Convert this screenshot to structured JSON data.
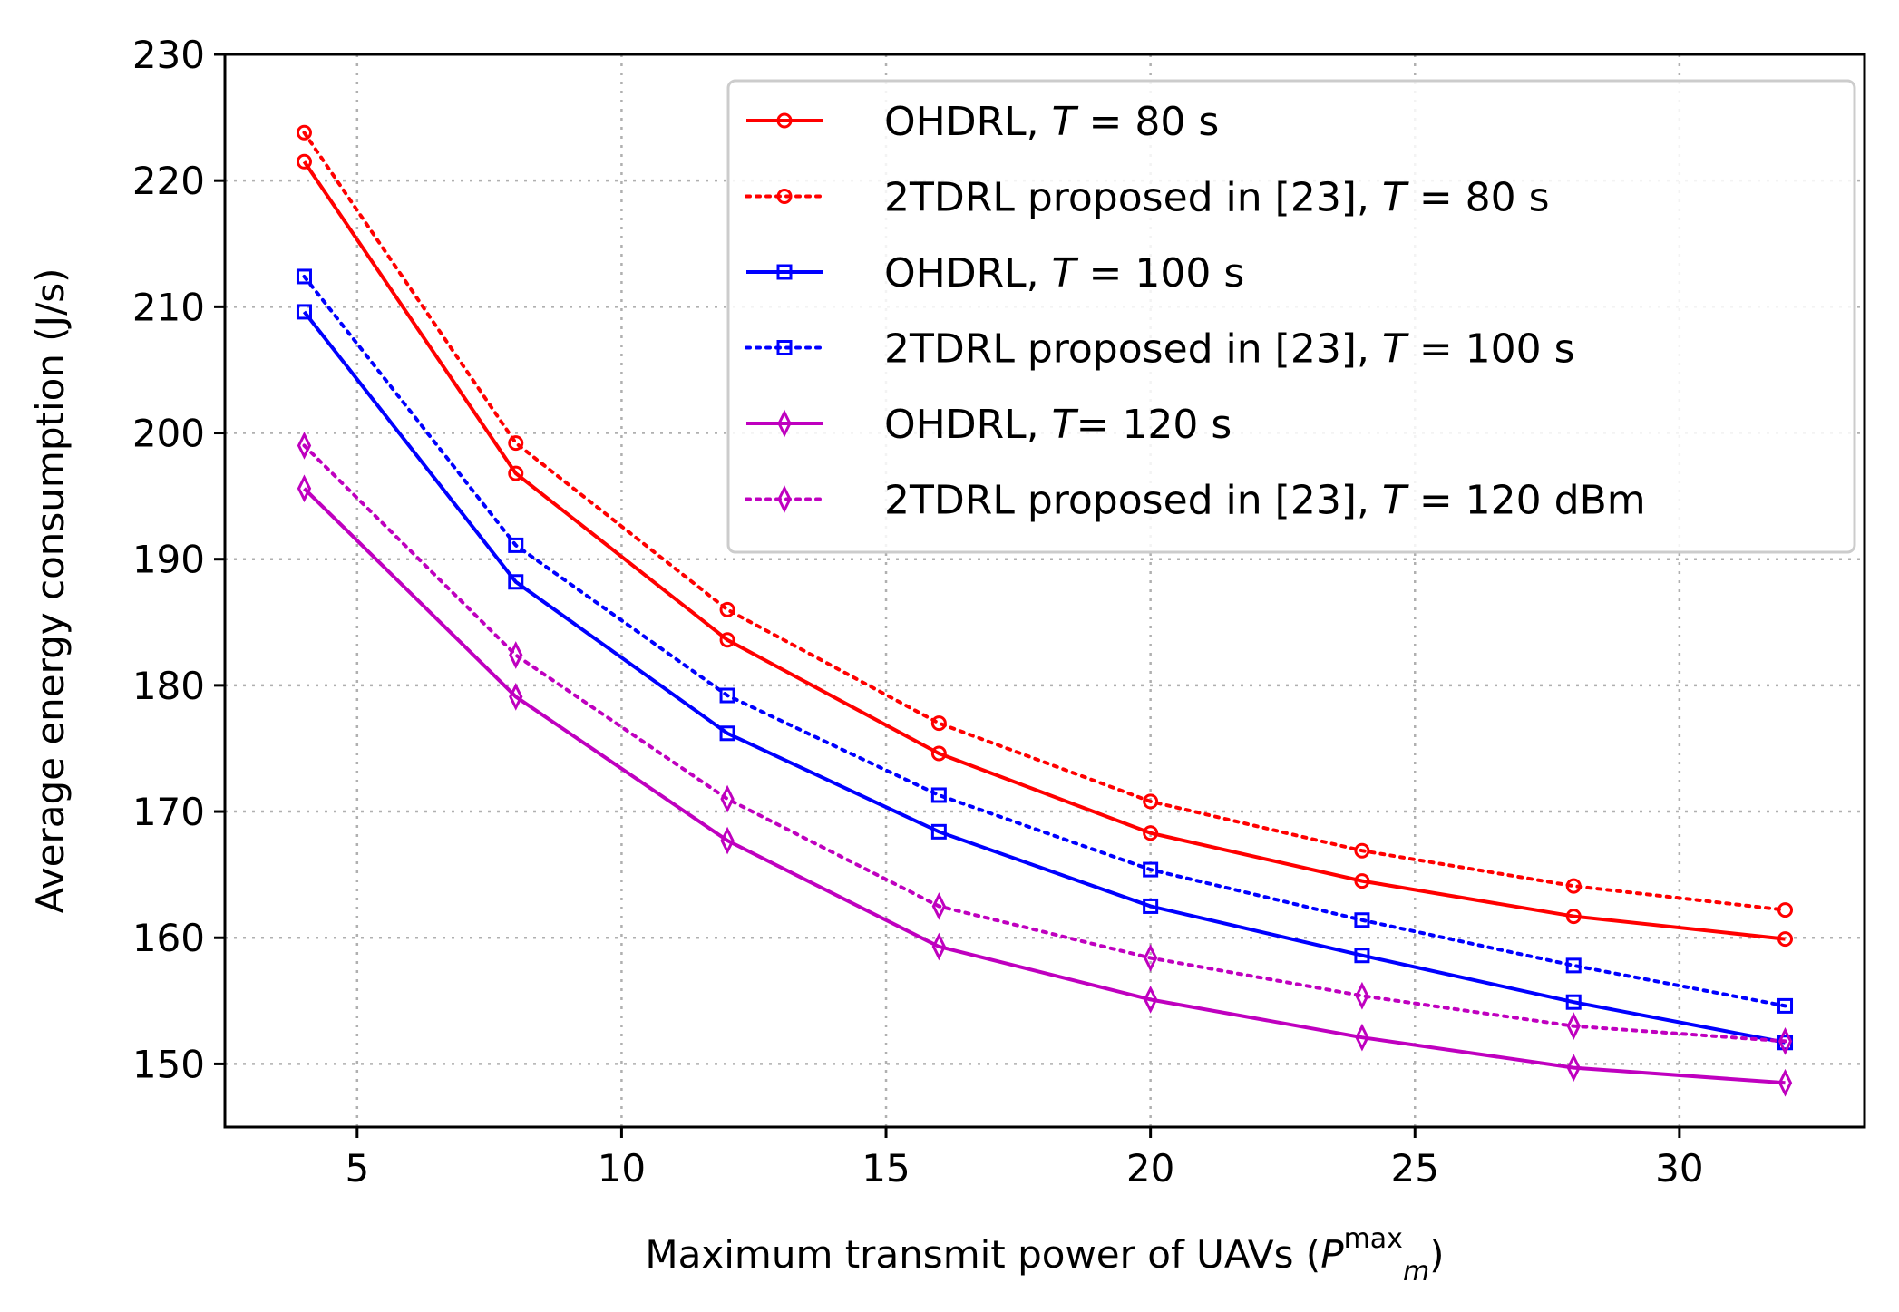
{
  "chart_data": {
    "type": "line",
    "xlabel": "Maximum transmit power of UAVs (",
    "xlabel_symbol": "P",
    "xlabel_subscript": "m",
    "xlabel_superscript": "max",
    "xlabel_close": ")",
    "ylabel": "Average energy consumption (J/s)",
    "xlim": [
      2.5,
      33.5
    ],
    "ylim": [
      145,
      230
    ],
    "xticks": [
      5,
      10,
      15,
      20,
      25,
      30
    ],
    "yticks": [
      150,
      160,
      170,
      180,
      190,
      200,
      210,
      220,
      230
    ],
    "grid": true,
    "legend_position": "top-right",
    "x": [
      4,
      8,
      12,
      16,
      20,
      24,
      28,
      32
    ],
    "series": [
      {
        "name": "OHDRL, T = 80 s",
        "label_pre": "OHDRL, ",
        "label_var": "T",
        "label_post": " = 80 s",
        "color": "#ff0000",
        "linestyle": "solid",
        "marker": "circle",
        "values": [
          221.5,
          196.8,
          183.6,
          174.6,
          168.3,
          164.5,
          161.7,
          159.9
        ]
      },
      {
        "name": "2TDRL proposed in [23], T = 80 s",
        "label_pre": "2TDRL proposed in [23], ",
        "label_var": "T",
        "label_post": " = 80 s",
        "color": "#ff0000",
        "linestyle": "dotted",
        "marker": "circle",
        "values": [
          223.8,
          199.2,
          186.0,
          177.0,
          170.8,
          166.9,
          164.1,
          162.2
        ]
      },
      {
        "name": "OHDRL, T = 100 s",
        "label_pre": "OHDRL, ",
        "label_var": "T",
        "label_post": " = 100 s",
        "color": "#0000ff",
        "linestyle": "solid",
        "marker": "square",
        "values": [
          209.6,
          188.2,
          176.2,
          168.4,
          162.5,
          158.6,
          154.9,
          151.7
        ]
      },
      {
        "name": "2TDRL proposed in [23], T = 100 s",
        "label_pre": "2TDRL proposed in [23], ",
        "label_var": "T",
        "label_post": " = 100 s",
        "color": "#0000ff",
        "linestyle": "dotted",
        "marker": "square",
        "values": [
          212.4,
          191.1,
          179.2,
          171.3,
          165.4,
          161.4,
          157.8,
          154.6
        ]
      },
      {
        "name": "OHDRL, T= 120 s",
        "label_pre": "OHDRL, ",
        "label_var": "T",
        "label_post": "= 120 s",
        "color": "#bf00bf",
        "linestyle": "solid",
        "marker": "diamond",
        "values": [
          195.6,
          179.1,
          167.7,
          159.3,
          155.1,
          152.1,
          149.7,
          148.5
        ]
      },
      {
        "name": "2TDRL proposed in [23], T = 120 dBm",
        "label_pre": "2TDRL proposed in [23], ",
        "label_var": "T",
        "label_post": " = 120 dBm",
        "color": "#bf00bf",
        "linestyle": "dotted",
        "marker": "diamond",
        "values": [
          199.0,
          182.4,
          171.0,
          162.5,
          158.4,
          155.4,
          153.0,
          151.8
        ]
      }
    ]
  }
}
